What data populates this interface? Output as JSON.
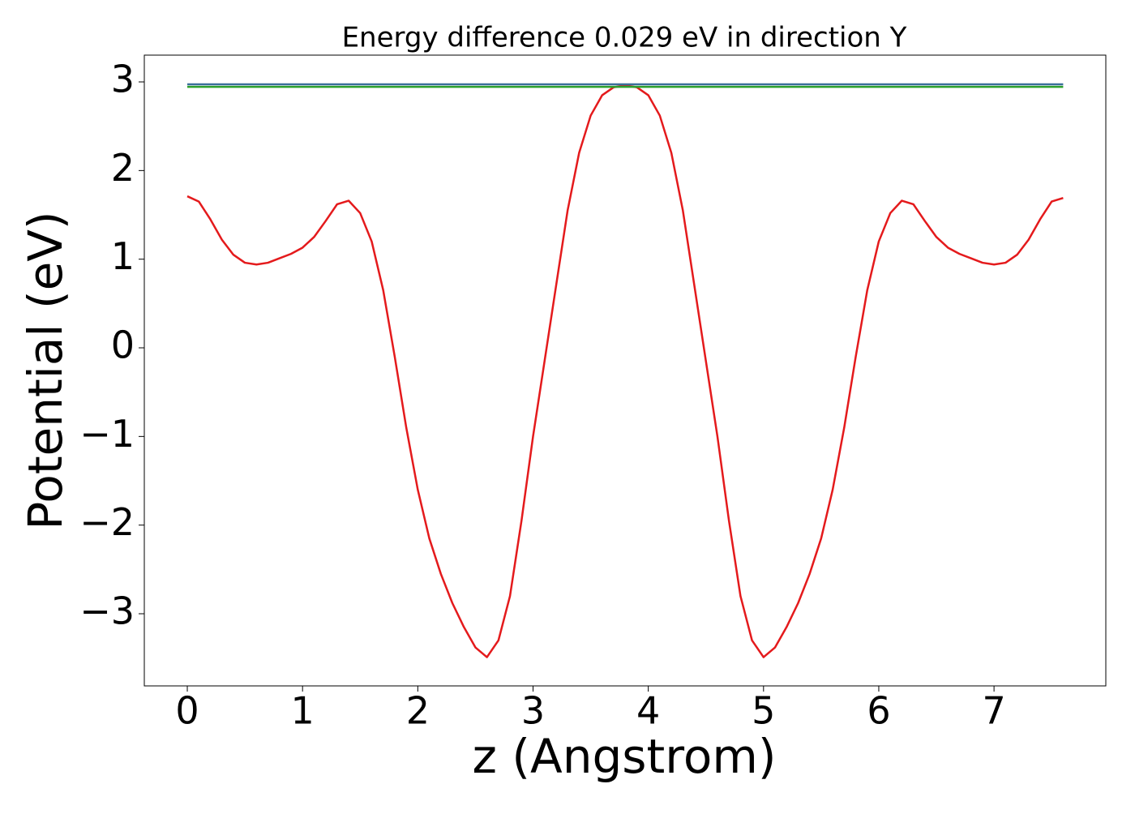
{
  "chart_data": {
    "type": "line",
    "title": "Energy difference 0.029 eV in direction Y",
    "x_label": "z (Angstrom)",
    "y_label": "Potential (eV)",
    "xlim": [
      -0.373,
      7.97
    ],
    "ylim": [
      -3.814,
      3.302
    ],
    "xticks": [
      0,
      1,
      2,
      3,
      4,
      5,
      6,
      7
    ],
    "yticks": [
      {
        "value": -3,
        "label": "−3"
      },
      {
        "value": -2,
        "label": "−2"
      },
      {
        "value": -1,
        "label": "−1"
      },
      0,
      1,
      2,
      3
    ],
    "series": [
      {
        "color": "#e41a1c",
        "x": [
          0,
          0.1,
          0.2,
          0.3,
          0.4,
          0.5,
          0.6,
          0.7,
          0.8,
          0.9,
          1.0,
          1.1,
          1.2,
          1.3,
          1.4,
          1.5,
          1.6,
          1.7,
          1.8,
          1.9,
          2.0,
          2.1,
          2.2,
          2.3,
          2.4,
          2.5,
          2.6,
          2.7,
          2.8,
          2.9,
          3.0,
          3.1,
          3.2,
          3.3,
          3.4,
          3.5,
          3.6,
          3.7,
          3.8,
          3.9,
          4.0,
          4.1,
          4.2,
          4.3,
          4.4,
          4.5,
          4.6,
          4.7,
          4.8,
          4.9,
          5.0,
          5.1,
          5.2,
          5.3,
          5.4,
          5.5,
          5.6,
          5.7,
          5.8,
          5.9,
          6.0,
          6.1,
          6.2,
          6.3,
          6.4,
          6.5,
          6.6,
          6.7,
          6.8,
          6.9,
          7.0,
          7.1,
          7.2,
          7.3,
          7.4,
          7.5,
          7.6
        ],
        "values": [
          1.71,
          1.65,
          1.45,
          1.22,
          1.05,
          0.96,
          0.94,
          0.96,
          1.01,
          1.06,
          1.13,
          1.25,
          1.43,
          1.62,
          1.66,
          1.52,
          1.2,
          0.65,
          -0.1,
          -0.9,
          -1.6,
          -2.15,
          -2.55,
          -2.88,
          -3.15,
          -3.38,
          -3.49,
          -3.3,
          -2.8,
          -1.95,
          -1.0,
          -0.15,
          0.7,
          1.55,
          2.2,
          2.62,
          2.85,
          2.94,
          2.96,
          2.94,
          2.85,
          2.62,
          2.2,
          1.55,
          0.7,
          -0.15,
          -1.0,
          -1.95,
          -2.8,
          -3.3,
          -3.49,
          -3.38,
          -3.15,
          -2.88,
          -2.55,
          -2.15,
          -1.6,
          -0.9,
          -0.1,
          0.65,
          1.2,
          1.52,
          1.66,
          1.62,
          1.43,
          1.25,
          1.13,
          1.06,
          1.01,
          0.96,
          0.94,
          0.96,
          1.05,
          1.22,
          1.45,
          1.65,
          1.69
        ]
      },
      {
        "color": "#3a6f9a",
        "x": [
          0,
          7.6
        ],
        "values": [
          2.973,
          2.973
        ]
      },
      {
        "color": "#2ca02c",
        "x": [
          0,
          7.6
        ],
        "values": [
          2.944,
          2.944
        ]
      }
    ]
  }
}
